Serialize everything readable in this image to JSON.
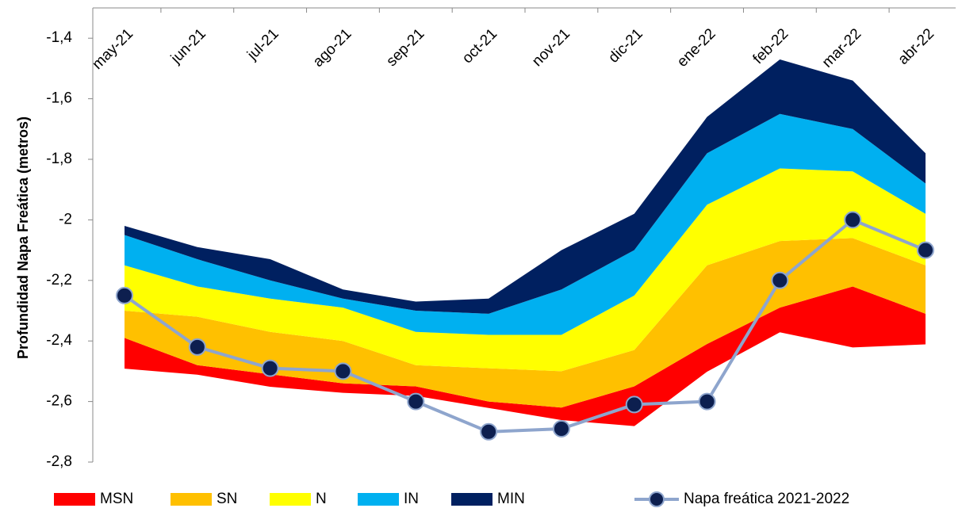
{
  "chart_data": {
    "type": "area",
    "y_label": "Profundidad Napa Freática (metros)",
    "categories": [
      "may-21",
      "jun-21",
      "jul-21",
      "ago-21",
      "sep-21",
      "oct-21",
      "nov-21",
      "dic-21",
      "ene-22",
      "feb-22",
      "mar-22",
      "abr-22"
    ],
    "base": [
      -2.49,
      -2.51,
      -2.55,
      -2.57,
      -2.58,
      -2.62,
      -2.66,
      -2.68,
      -2.5,
      -2.37,
      -2.42,
      -2.41
    ],
    "series": [
      {
        "name": "MSN",
        "color": "#ff0000",
        "values": [
          -2.39,
          -2.48,
          -2.51,
          -2.54,
          -2.55,
          -2.6,
          -2.62,
          -2.55,
          -2.41,
          -2.29,
          -2.22,
          -2.31
        ]
      },
      {
        "name": "SN",
        "color": "#ffc000",
        "values": [
          -2.3,
          -2.32,
          -2.37,
          -2.4,
          -2.48,
          -2.49,
          -2.5,
          -2.43,
          -2.15,
          -2.07,
          -2.06,
          -2.15
        ]
      },
      {
        "name": "N",
        "color": "#ffff00",
        "values": [
          -2.15,
          -2.22,
          -2.26,
          -2.29,
          -2.37,
          -2.38,
          -2.38,
          -2.25,
          -1.95,
          -1.83,
          -1.84,
          -1.98
        ]
      },
      {
        "name": "IN",
        "color": "#00b0f0",
        "values": [
          -2.05,
          -2.13,
          -2.2,
          -2.26,
          -2.3,
          -2.31,
          -2.23,
          -2.1,
          -1.78,
          -1.65,
          -1.7,
          -1.88
        ]
      },
      {
        "name": "MIN",
        "color": "#002060",
        "values": [
          -2.02,
          -2.09,
          -2.13,
          -2.23,
          -2.27,
          -2.26,
          -2.1,
          -1.98,
          -1.66,
          -1.47,
          -1.54,
          -1.78
        ]
      },
      {
        "name": "Napa freática 2021-2022",
        "type": "line",
        "color": "#8ea5cd",
        "marker_color": "#0d1f4f",
        "values": [
          -2.25,
          -2.42,
          -2.49,
          -2.5,
          -2.6,
          -2.7,
          -2.69,
          -2.61,
          -2.6,
          -2.2,
          -2.0,
          -2.1
        ]
      }
    ],
    "ylim": [
      -2.8,
      -1.3
    ],
    "yticks": [
      {
        "value": -1.4,
        "label": "-1,4"
      },
      {
        "value": -1.6,
        "label": "-1,6"
      },
      {
        "value": -1.8,
        "label": "-1,8"
      },
      -2,
      {
        "value": -2.2,
        "label": "-2,2"
      },
      {
        "value": -2.4,
        "label": "-2,4"
      },
      {
        "value": -2.6,
        "label": "-2,6"
      },
      {
        "value": -2.8,
        "label": "-2,8"
      }
    ]
  }
}
